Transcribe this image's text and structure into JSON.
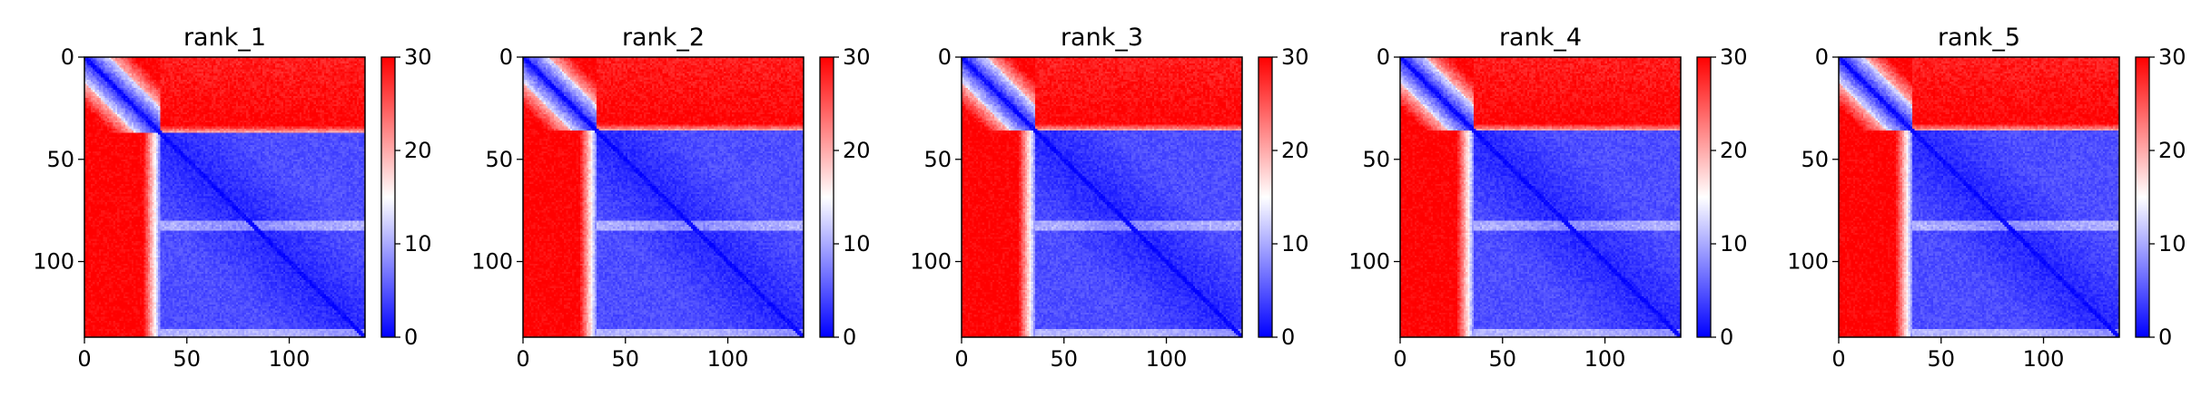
{
  "chart_data": [
    {
      "type": "heatmap",
      "title": "rank_1",
      "x_ticks": [
        0,
        50,
        100
      ],
      "y_ticks": [
        0,
        50,
        100
      ],
      "xlim": [
        0,
        137
      ],
      "ylim": [
        137,
        0
      ],
      "colorbar": {
        "range": [
          0,
          30
        ],
        "ticks": [
          0,
          10,
          20,
          30
        ],
        "colormap": "bwr"
      },
      "n_residues": 137,
      "domain_split": 37,
      "low_band": 82
    },
    {
      "type": "heatmap",
      "title": "rank_2",
      "x_ticks": [
        0,
        50,
        100
      ],
      "y_ticks": [
        0,
        50,
        100
      ],
      "xlim": [
        0,
        137
      ],
      "ylim": [
        137,
        0
      ],
      "colorbar": {
        "range": [
          0,
          30
        ],
        "ticks": [
          0,
          10,
          20,
          30
        ],
        "colormap": "bwr"
      },
      "n_residues": 137,
      "domain_split": 36,
      "low_band": 82
    },
    {
      "type": "heatmap",
      "title": "rank_3",
      "x_ticks": [
        0,
        50,
        100
      ],
      "y_ticks": [
        0,
        50,
        100
      ],
      "xlim": [
        0,
        137
      ],
      "ylim": [
        137,
        0
      ],
      "colorbar": {
        "range": [
          0,
          30
        ],
        "ticks": [
          0,
          10,
          20,
          30
        ],
        "colormap": "bwr"
      },
      "n_residues": 137,
      "domain_split": 36,
      "low_band": 82
    },
    {
      "type": "heatmap",
      "title": "rank_4",
      "x_ticks": [
        0,
        50,
        100
      ],
      "y_ticks": [
        0,
        50,
        100
      ],
      "xlim": [
        0,
        137
      ],
      "ylim": [
        137,
        0
      ],
      "colorbar": {
        "range": [
          0,
          30
        ],
        "ticks": [
          0,
          10,
          20,
          30
        ],
        "colormap": "bwr"
      },
      "n_residues": 137,
      "domain_split": 36,
      "low_band": 82
    },
    {
      "type": "heatmap",
      "title": "rank_5",
      "x_ticks": [
        0,
        50,
        100
      ],
      "y_ticks": [
        0,
        50,
        100
      ],
      "xlim": [
        0,
        137
      ],
      "ylim": [
        137,
        0
      ],
      "colorbar": {
        "range": [
          0,
          30
        ],
        "ticks": [
          0,
          10,
          20,
          30
        ],
        "colormap": "bwr"
      },
      "n_residues": 137,
      "domain_split": 36,
      "low_band": 82
    }
  ]
}
